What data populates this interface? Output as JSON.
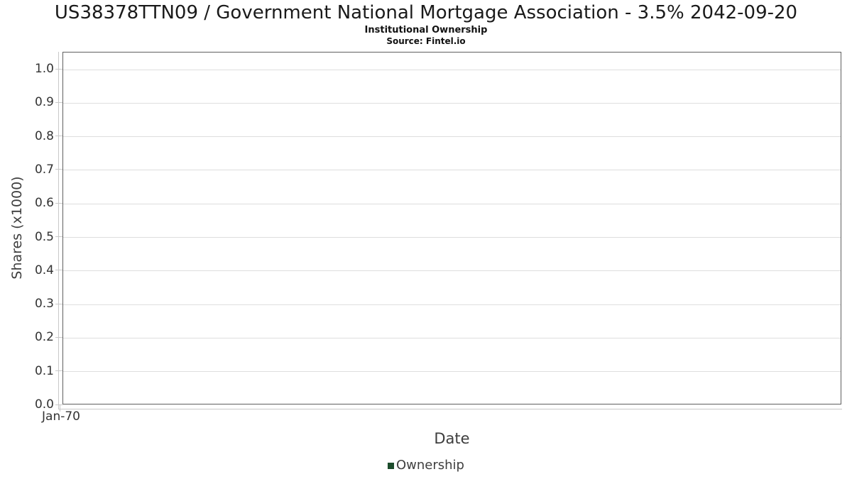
{
  "header": {
    "title": "US38378TTN09 / Government National Mortgage Association - 3.5% 2042-09-20",
    "subtitle": "Institutional Ownership",
    "source": "Source: Fintel.io"
  },
  "chart_data": {
    "type": "line",
    "title": "US38378TTN09 / Government National Mortgage Association - 3.5% 2042-09-20",
    "subtitle": "Institutional Ownership",
    "source": "Source: Fintel.io",
    "xlabel": "Date",
    "ylabel": "Shares (x1000)",
    "x_ticks": [
      "Jan-70"
    ],
    "y_ticks": [
      "0.0",
      "0.1",
      "0.2",
      "0.3",
      "0.4",
      "0.5",
      "0.6",
      "0.7",
      "0.8",
      "0.9",
      "1.0"
    ],
    "ylim": [
      0,
      1.05
    ],
    "grid": true,
    "legend_position": "bottom",
    "series": [
      {
        "name": "Ownership",
        "color": "#1c4c2b",
        "x": [],
        "values": []
      }
    ]
  },
  "legend": {
    "items": [
      {
        "label": "Ownership",
        "color": "#1c4c2b"
      }
    ]
  },
  "colors": {
    "plot_border": "#5f5f5f",
    "gridline": "#dedede",
    "axis_line": "#c9c9c9",
    "tick_text": "#333333",
    "axis_title_text": "#3d3d3d",
    "legend_text": "#3f3f3f",
    "series_green": "#1c4c2b",
    "background": "#ffffff"
  }
}
